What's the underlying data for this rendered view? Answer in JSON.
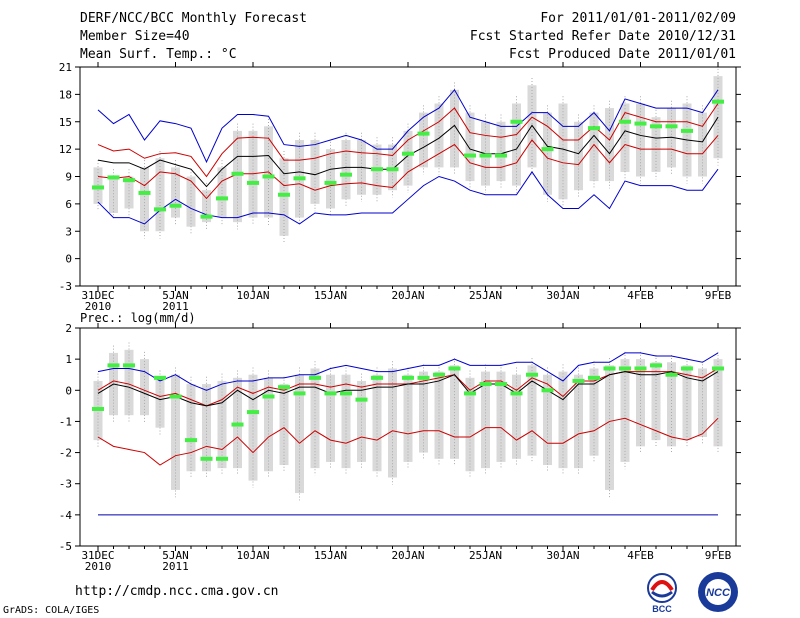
{
  "header": {
    "left": [
      "DERF/NCC/BCC Monthly Forecast",
      "Member Size=40",
      "Mean Surf. Temp.: °C"
    ],
    "right": [
      "For 2011/01/01-2011/02/09",
      "Fcst Started Refer Date 2010/12/31",
      "Fcst Produced Date 2011/01/01"
    ]
  },
  "footer": {
    "url": "http://cmdp.ncc.cma.gov.cn",
    "credit": "GrADS: COLA/IGES",
    "logo1_text": "BCC",
    "logo2_text": "NCC"
  },
  "colors": {
    "outer": "#0000cc",
    "pct": "#cc0000",
    "mean": "#000000",
    "box": "#d9d9d9",
    "obs": "#44ee44",
    "floor": "#0000aa"
  },
  "chart_data": [
    {
      "type": "line",
      "title": "Mean Surf. Temp.: °C",
      "ylabel": "",
      "ylim": [
        -3,
        21
      ],
      "yticks": [
        "21",
        "18",
        "15",
        "12",
        "9",
        "6",
        "3",
        "0",
        "-3"
      ],
      "xticks": [
        {
          "day": 0,
          "label": "31DEC",
          "sub": "2010"
        },
        {
          "day": 5,
          "label": "5JAN",
          "sub": "2011"
        },
        {
          "day": 10,
          "label": "10JAN",
          "sub": ""
        },
        {
          "day": 15,
          "label": "15JAN",
          "sub": ""
        },
        {
          "day": 20,
          "label": "20JAN",
          "sub": ""
        },
        {
          "day": 25,
          "label": "25JAN",
          "sub": ""
        },
        {
          "day": 30,
          "label": "30JAN",
          "sub": ""
        },
        {
          "day": 35,
          "label": "4FEB",
          "sub": ""
        },
        {
          "day": 40,
          "label": "9FEB",
          "sub": ""
        }
      ],
      "series": [
        {
          "name": "max",
          "role": "outer",
          "values": [
            16.3,
            14.8,
            15.8,
            13.0,
            15.1,
            14.8,
            14.3,
            10.6,
            14.3,
            15.8,
            15.8,
            15.6,
            12.5,
            12.3,
            12.5,
            13.0,
            13.5,
            13.0,
            12.0,
            12.0,
            14.0,
            15.5,
            16.5,
            18.5,
            15.5,
            15.0,
            14.5,
            14.5,
            16.0,
            16.0,
            14.5,
            14.5,
            16.0,
            14.0,
            17.5,
            17.0,
            16.5,
            16.5,
            16.5,
            16.0,
            18.5
          ]
        },
        {
          "name": "p75",
          "role": "pct",
          "values": [
            12.5,
            11.8,
            12.0,
            11.0,
            11.5,
            11.6,
            11.2,
            9.0,
            11.5,
            13.2,
            13.3,
            13.2,
            10.8,
            10.8,
            11.0,
            11.5,
            11.8,
            11.6,
            11.5,
            11.3,
            13.0,
            14.0,
            15.0,
            16.5,
            13.8,
            13.5,
            13.3,
            13.6,
            15.5,
            14.5,
            13.0,
            13.0,
            14.5,
            13.0,
            16.0,
            15.5,
            15.0,
            15.0,
            15.0,
            14.5,
            17.0
          ]
        },
        {
          "name": "mean",
          "role": "mean",
          "values": [
            10.8,
            10.5,
            10.5,
            9.8,
            10.8,
            10.3,
            9.8,
            7.9,
            9.8,
            11.2,
            11.2,
            11.3,
            9.3,
            9.5,
            9.2,
            9.8,
            10.0,
            10.0,
            9.8,
            9.8,
            11.3,
            12.2,
            13.2,
            14.6,
            12.0,
            11.5,
            11.5,
            12.0,
            14.6,
            12.3,
            12.0,
            11.5,
            13.5,
            11.5,
            14.0,
            13.5,
            13.2,
            13.3,
            13.0,
            12.8,
            15.5
          ]
        },
        {
          "name": "p25",
          "role": "pct",
          "values": [
            9.0,
            8.8,
            9.0,
            8.0,
            9.5,
            9.3,
            8.5,
            6.6,
            8.5,
            9.3,
            9.3,
            9.5,
            8.0,
            8.2,
            7.5,
            8.0,
            8.2,
            8.3,
            8.0,
            7.8,
            9.5,
            10.5,
            11.5,
            12.5,
            10.5,
            10.0,
            10.0,
            10.5,
            13.0,
            11.0,
            10.5,
            10.3,
            12.5,
            10.5,
            12.5,
            12.0,
            12.0,
            12.0,
            11.5,
            11.5,
            13.5
          ]
        },
        {
          "name": "min",
          "role": "outer",
          "values": [
            6.2,
            4.5,
            4.5,
            3.8,
            5.3,
            6.5,
            5.5,
            4.8,
            4.5,
            4.5,
            5.0,
            5.0,
            4.8,
            3.8,
            5.0,
            4.8,
            4.8,
            5.0,
            5.0,
            5.0,
            6.5,
            8.0,
            9.0,
            8.5,
            7.5,
            7.0,
            7.0,
            7.0,
            9.5,
            7.0,
            5.5,
            5.5,
            7.0,
            5.5,
            8.5,
            8.0,
            8.0,
            8.0,
            7.5,
            7.5,
            9.8
          ]
        }
      ],
      "ranges": [
        [
          6.0,
          10.0
        ],
        [
          5.0,
          9.0
        ],
        [
          5.5,
          9.0
        ],
        [
          3.0,
          10.0
        ],
        [
          3.0,
          11.0
        ],
        [
          4.5,
          10.0
        ],
        [
          3.5,
          9.0
        ],
        [
          4.0,
          7.5
        ],
        [
          4.5,
          10.0
        ],
        [
          4.0,
          14.0
        ],
        [
          4.5,
          14.0
        ],
        [
          4.5,
          14.5
        ],
        [
          2.5,
          11.0
        ],
        [
          4.5,
          13.0
        ],
        [
          6.0,
          13.0
        ],
        [
          5.5,
          12.0
        ],
        [
          6.5,
          13.0
        ],
        [
          7.0,
          13.0
        ],
        [
          7.0,
          12.5
        ],
        [
          7.5,
          12.5
        ],
        [
          8.0,
          14.0
        ],
        [
          10.0,
          16.0
        ],
        [
          10.0,
          17.0
        ],
        [
          10.0,
          18.5
        ],
        [
          8.5,
          16.0
        ],
        [
          8.0,
          15.0
        ],
        [
          8.5,
          15.0
        ],
        [
          8.0,
          17.0
        ],
        [
          10.0,
          19.0
        ],
        [
          7.0,
          16.0
        ],
        [
          6.5,
          17.0
        ],
        [
          7.5,
          15.0
        ],
        [
          8.5,
          16.0
        ],
        [
          8.5,
          16.5
        ],
        [
          9.5,
          17.0
        ],
        [
          9.0,
          17.0
        ],
        [
          9.5,
          15.5
        ],
        [
          10.0,
          16.5
        ],
        [
          9.0,
          17.0
        ],
        [
          9.0,
          16.0
        ],
        [
          11.0,
          20.0
        ]
      ],
      "observed": [
        7.8,
        8.9,
        8.6,
        7.2,
        5.4,
        5.8,
        null,
        4.6,
        6.6,
        9.3,
        8.3,
        9.0,
        7.0,
        8.8,
        null,
        8.3,
        9.2,
        null,
        9.8,
        9.8,
        11.5,
        13.7,
        null,
        null,
        11.3,
        11.3,
        11.3,
        15.0,
        null,
        12.0,
        null,
        null,
        14.3,
        null,
        15.0,
        14.8,
        14.5,
        14.5,
        14.0,
        null,
        17.2
      ]
    },
    {
      "type": "line",
      "title": "Prec.: log(mm/d)",
      "ylabel": "",
      "ylim": [
        -5,
        2
      ],
      "yticks": [
        "2",
        "1",
        "0",
        "-1",
        "-2",
        "-3",
        "-4",
        "-5"
      ],
      "xticks": [
        {
          "day": 0,
          "label": "31DEC",
          "sub": "2010"
        },
        {
          "day": 5,
          "label": "5JAN",
          "sub": "2011"
        },
        {
          "day": 10,
          "label": "10JAN",
          "sub": ""
        },
        {
          "day": 15,
          "label": "15JAN",
          "sub": ""
        },
        {
          "day": 20,
          "label": "20JAN",
          "sub": ""
        },
        {
          "day": 25,
          "label": "25JAN",
          "sub": ""
        },
        {
          "day": 30,
          "label": "30JAN",
          "sub": ""
        },
        {
          "day": 35,
          "label": "4FEB",
          "sub": ""
        },
        {
          "day": 40,
          "label": "9FEB",
          "sub": ""
        }
      ],
      "floor": -4,
      "series": [
        {
          "name": "max",
          "role": "outer",
          "values": [
            0.6,
            0.7,
            0.7,
            0.6,
            0.3,
            0.5,
            0.2,
            0.0,
            0.2,
            0.3,
            0.3,
            0.4,
            0.4,
            0.5,
            0.5,
            0.7,
            0.8,
            0.7,
            0.6,
            0.6,
            0.7,
            0.8,
            0.8,
            1.0,
            0.8,
            0.8,
            0.8,
            0.9,
            0.9,
            0.6,
            0.3,
            0.8,
            0.9,
            0.9,
            1.2,
            1.2,
            1.1,
            1.1,
            1.0,
            0.9,
            1.2
          ]
        },
        {
          "name": "p75",
          "role": "pct",
          "values": [
            0.0,
            0.3,
            0.2,
            0.0,
            -0.2,
            -0.1,
            -0.3,
            -0.5,
            -0.3,
            0.1,
            -0.1,
            0.1,
            0.0,
            0.2,
            0.2,
            0.1,
            0.2,
            0.1,
            0.2,
            0.2,
            0.2,
            0.3,
            0.4,
            0.5,
            0.0,
            0.3,
            0.3,
            0.0,
            0.4,
            0.2,
            -0.2,
            0.3,
            0.3,
            0.5,
            0.6,
            0.6,
            0.6,
            0.6,
            0.5,
            0.4,
            0.7
          ]
        },
        {
          "name": "mean",
          "role": "mean",
          "values": [
            -0.1,
            0.2,
            0.1,
            -0.1,
            -0.3,
            -0.2,
            -0.4,
            -0.5,
            -0.4,
            0.0,
            -0.3,
            0.0,
            -0.1,
            0.1,
            0.1,
            -0.1,
            0.0,
            0.0,
            0.1,
            0.1,
            0.2,
            0.2,
            0.3,
            0.5,
            -0.1,
            0.2,
            0.2,
            -0.1,
            0.3,
            0.0,
            -0.3,
            0.2,
            0.2,
            0.5,
            0.6,
            0.5,
            0.5,
            0.6,
            0.4,
            0.3,
            0.6
          ]
        },
        {
          "name": "p25",
          "role": "pct",
          "values": [
            -1.5,
            -1.8,
            -1.9,
            -2.0,
            -2.4,
            -2.1,
            -2.0,
            -1.8,
            -1.9,
            -1.5,
            -2.0,
            -1.5,
            -1.2,
            -1.7,
            -1.3,
            -1.6,
            -1.7,
            -1.5,
            -1.6,
            -1.3,
            -1.4,
            -1.3,
            -1.3,
            -1.5,
            -1.5,
            -1.2,
            -1.2,
            -1.6,
            -1.3,
            -1.7,
            -1.7,
            -1.4,
            -1.3,
            -1.0,
            -0.9,
            -1.1,
            -1.3,
            -1.5,
            -1.6,
            -1.4,
            -0.9
          ]
        },
        {
          "name": "min",
          "role": "outer",
          "values": [
            -4,
            -4,
            -4,
            -4,
            -4,
            -4,
            -4,
            -4,
            -4,
            -4,
            -4,
            -4,
            -4,
            -4,
            -4,
            -4,
            -4,
            -4,
            -4,
            -4,
            -4,
            -4,
            -4,
            -4,
            -4,
            -4,
            -4,
            -4,
            -4,
            -4,
            -4,
            -4,
            -4,
            -4,
            -4,
            -4,
            -4,
            -4,
            -4,
            -4,
            -4
          ]
        }
      ],
      "ranges": [
        [
          -1.6,
          0.3
        ],
        [
          -0.8,
          1.2
        ],
        [
          -0.8,
          1.3
        ],
        [
          -0.8,
          1.0
        ],
        [
          -1.2,
          0.4
        ],
        [
          -3.2,
          0.5
        ],
        [
          -2.6,
          0.2
        ],
        [
          -2.6,
          0.2
        ],
        [
          -2.5,
          0.3
        ],
        [
          -2.5,
          0.4
        ],
        [
          -2.9,
          0.5
        ],
        [
          -2.6,
          0.4
        ],
        [
          -2.4,
          0.2
        ],
        [
          -3.3,
          0.5
        ],
        [
          -2.5,
          0.7
        ],
        [
          -2.3,
          0.5
        ],
        [
          -2.5,
          0.5
        ],
        [
          -2.3,
          0.3
        ],
        [
          -2.6,
          0.5
        ],
        [
          -2.8,
          0.7
        ],
        [
          -2.3,
          0.5
        ],
        [
          -2.0,
          0.6
        ],
        [
          -2.2,
          0.6
        ],
        [
          -2.2,
          0.8
        ],
        [
          -2.6,
          0.4
        ],
        [
          -2.5,
          0.6
        ],
        [
          -2.3,
          0.6
        ],
        [
          -2.2,
          0.5
        ],
        [
          -2.1,
          0.8
        ],
        [
          -2.4,
          0.5
        ],
        [
          -2.5,
          0.6
        ],
        [
          -2.5,
          0.5
        ],
        [
          -2.1,
          0.7
        ],
        [
          -3.2,
          0.8
        ],
        [
          -2.3,
          1.0
        ],
        [
          -1.8,
          1.0
        ],
        [
          -1.6,
          0.9
        ],
        [
          -1.8,
          0.9
        ],
        [
          -1.6,
          0.8
        ],
        [
          -1.5,
          0.7
        ],
        [
          -1.8,
          1.0
        ]
      ],
      "observed": [
        -0.6,
        0.8,
        0.8,
        null,
        0.4,
        -0.2,
        -1.6,
        -2.2,
        -2.2,
        -1.1,
        -0.7,
        -0.2,
        0.1,
        -0.1,
        0.4,
        -0.1,
        -0.1,
        -0.3,
        0.4,
        null,
        0.4,
        0.4,
        0.5,
        0.7,
        -0.1,
        0.2,
        0.2,
        -0.1,
        0.5,
        0.0,
        null,
        0.3,
        0.4,
        0.7,
        0.7,
        0.7,
        0.8,
        0.5,
        0.7,
        null,
        0.7
      ]
    }
  ]
}
